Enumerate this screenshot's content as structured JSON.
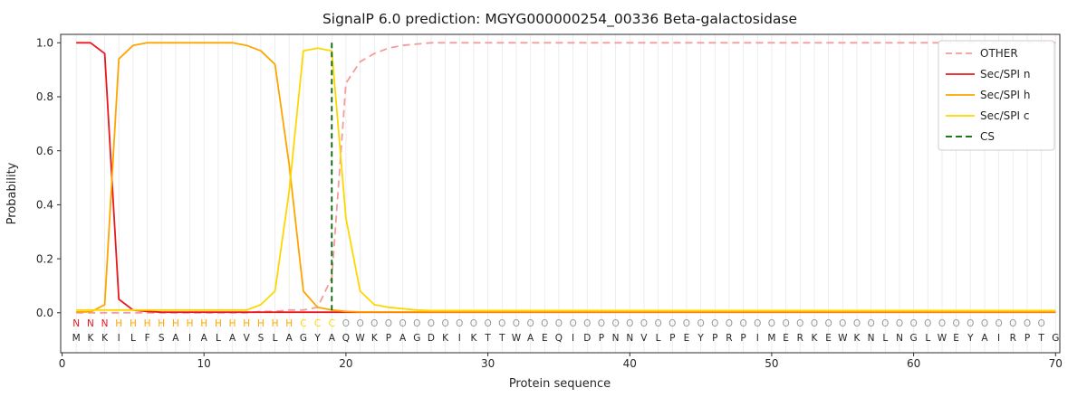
{
  "title": "SignalP 6.0 prediction: MGYG000000254_00336 Beta-galactosidase",
  "chart_data": {
    "type": "line",
    "xlabel": "Protein sequence",
    "ylabel": "Probability",
    "x_range": [
      1,
      70
    ],
    "xticks": [
      0,
      10,
      20,
      30,
      40,
      50,
      60,
      70
    ],
    "yticks": [
      "0.0",
      "0.2",
      "0.4",
      "0.6",
      "0.8",
      "1.0"
    ],
    "xlim": [
      -0.1,
      70.3
    ],
    "ylim": [
      -0.148,
      1.031
    ],
    "grid": "vertical line at every residue position",
    "legend_position": "upper right",
    "series": [
      {
        "name": "OTHER",
        "color": "#f59b9b",
        "dash": true,
        "values": [
          0,
          0,
          0,
          0,
          0,
          0,
          0,
          0,
          0,
          0,
          0,
          0,
          0,
          0.005,
          0.005,
          0.01,
          0.01,
          0.02,
          0.13,
          0.85,
          0.93,
          0.96,
          0.98,
          0.99,
          0.995,
          1,
          1,
          1,
          1,
          1,
          1,
          1,
          1,
          1,
          1,
          1,
          1,
          1,
          1,
          1,
          1,
          1,
          1,
          1,
          1,
          1,
          1,
          1,
          1,
          1,
          1,
          1,
          1,
          1,
          1,
          1,
          1,
          1,
          1,
          1,
          1,
          1,
          1,
          1,
          1,
          1,
          1,
          1,
          1,
          1
        ]
      },
      {
        "name": "Sec/SPI n",
        "color": "#e8191e",
        "dash": false,
        "values": [
          1,
          1,
          0.96,
          0.05,
          0.01,
          0.005,
          0.002,
          0.002,
          0.002,
          0.002,
          0.002,
          0.002,
          0.002,
          0.002,
          0.002,
          0.002,
          0.002,
          0.002,
          0.002,
          0.002,
          0.002,
          0.002,
          0.002,
          0.002,
          0.002,
          0.002,
          0.002,
          0.002,
          0.002,
          0.002,
          0.002,
          0.002,
          0.002,
          0.002,
          0.002,
          0.002,
          0.002,
          0.002,
          0.002,
          0.002,
          0.002,
          0.002,
          0.002,
          0.002,
          0.002,
          0.002,
          0.002,
          0.002,
          0.002,
          0.002,
          0.002,
          0.002,
          0.002,
          0.002,
          0.002,
          0.002,
          0.002,
          0.002,
          0.002,
          0.002,
          0.002,
          0.002,
          0.002,
          0.002,
          0.002,
          0.002,
          0.002,
          0.002,
          0.002,
          0.002
        ]
      },
      {
        "name": "Sec/SPI h",
        "color": "#ffa500",
        "dash": false,
        "values": [
          0.003,
          0.003,
          0.03,
          0.94,
          0.99,
          1,
          1,
          1,
          1,
          1,
          1,
          1,
          0.99,
          0.97,
          0.92,
          0.55,
          0.08,
          0.02,
          0.01,
          0.005,
          0.003,
          0.003,
          0.003,
          0.003,
          0.003,
          0.003,
          0.003,
          0.003,
          0.003,
          0.003,
          0.003,
          0.003,
          0.003,
          0.003,
          0.003,
          0.003,
          0.003,
          0.003,
          0.003,
          0.003,
          0.003,
          0.003,
          0.003,
          0.003,
          0.003,
          0.003,
          0.003,
          0.003,
          0.003,
          0.003,
          0.003,
          0.003,
          0.003,
          0.003,
          0.003,
          0.003,
          0.003,
          0.003,
          0.003,
          0.003,
          0.003,
          0.003,
          0.003,
          0.003,
          0.003,
          0.003,
          0.003,
          0.003,
          0.003,
          0.003
        ]
      },
      {
        "name": "Sec/SPI c",
        "color": "#ffd700",
        "dash": false,
        "values": [
          0.01,
          0.01,
          0.01,
          0.01,
          0.01,
          0.01,
          0.01,
          0.01,
          0.01,
          0.01,
          0.01,
          0.01,
          0.01,
          0.03,
          0.08,
          0.45,
          0.97,
          0.98,
          0.97,
          0.35,
          0.08,
          0.03,
          0.02,
          0.015,
          0.01,
          0.008,
          0.008,
          0.008,
          0.008,
          0.008,
          0.008,
          0.008,
          0.008,
          0.008,
          0.008,
          0.008,
          0.008,
          0.008,
          0.008,
          0.008,
          0.008,
          0.008,
          0.008,
          0.008,
          0.008,
          0.008,
          0.008,
          0.008,
          0.008,
          0.008,
          0.008,
          0.008,
          0.008,
          0.008,
          0.008,
          0.008,
          0.008,
          0.008,
          0.008,
          0.008,
          0.008,
          0.008,
          0.008,
          0.008,
          0.008,
          0.008,
          0.008,
          0.008,
          0.008,
          0.008
        ]
      }
    ],
    "cs_line": {
      "name": "CS",
      "x": 19,
      "color": "#006400",
      "dash": true
    },
    "residue_labels": "NNNHHHHHHHHHHHHHCCCOOOOOOOOOOOOOOOOOOOOOOOOOOOOOOOOOOOOOOOOOOOOOOOOOO",
    "sequence": "MKKILFSAIALAVSLAGYAQWKPAGDKIKTTWAEQIDPNNVLPEYPRPIMERKEWKNLNGLWEYAIRPTG",
    "label_colors": {
      "N": "#e8191e",
      "H": "#ffa500",
      "C": "#ffd700",
      "O": "#9a9a9a"
    },
    "sequence_color": "#262626"
  }
}
